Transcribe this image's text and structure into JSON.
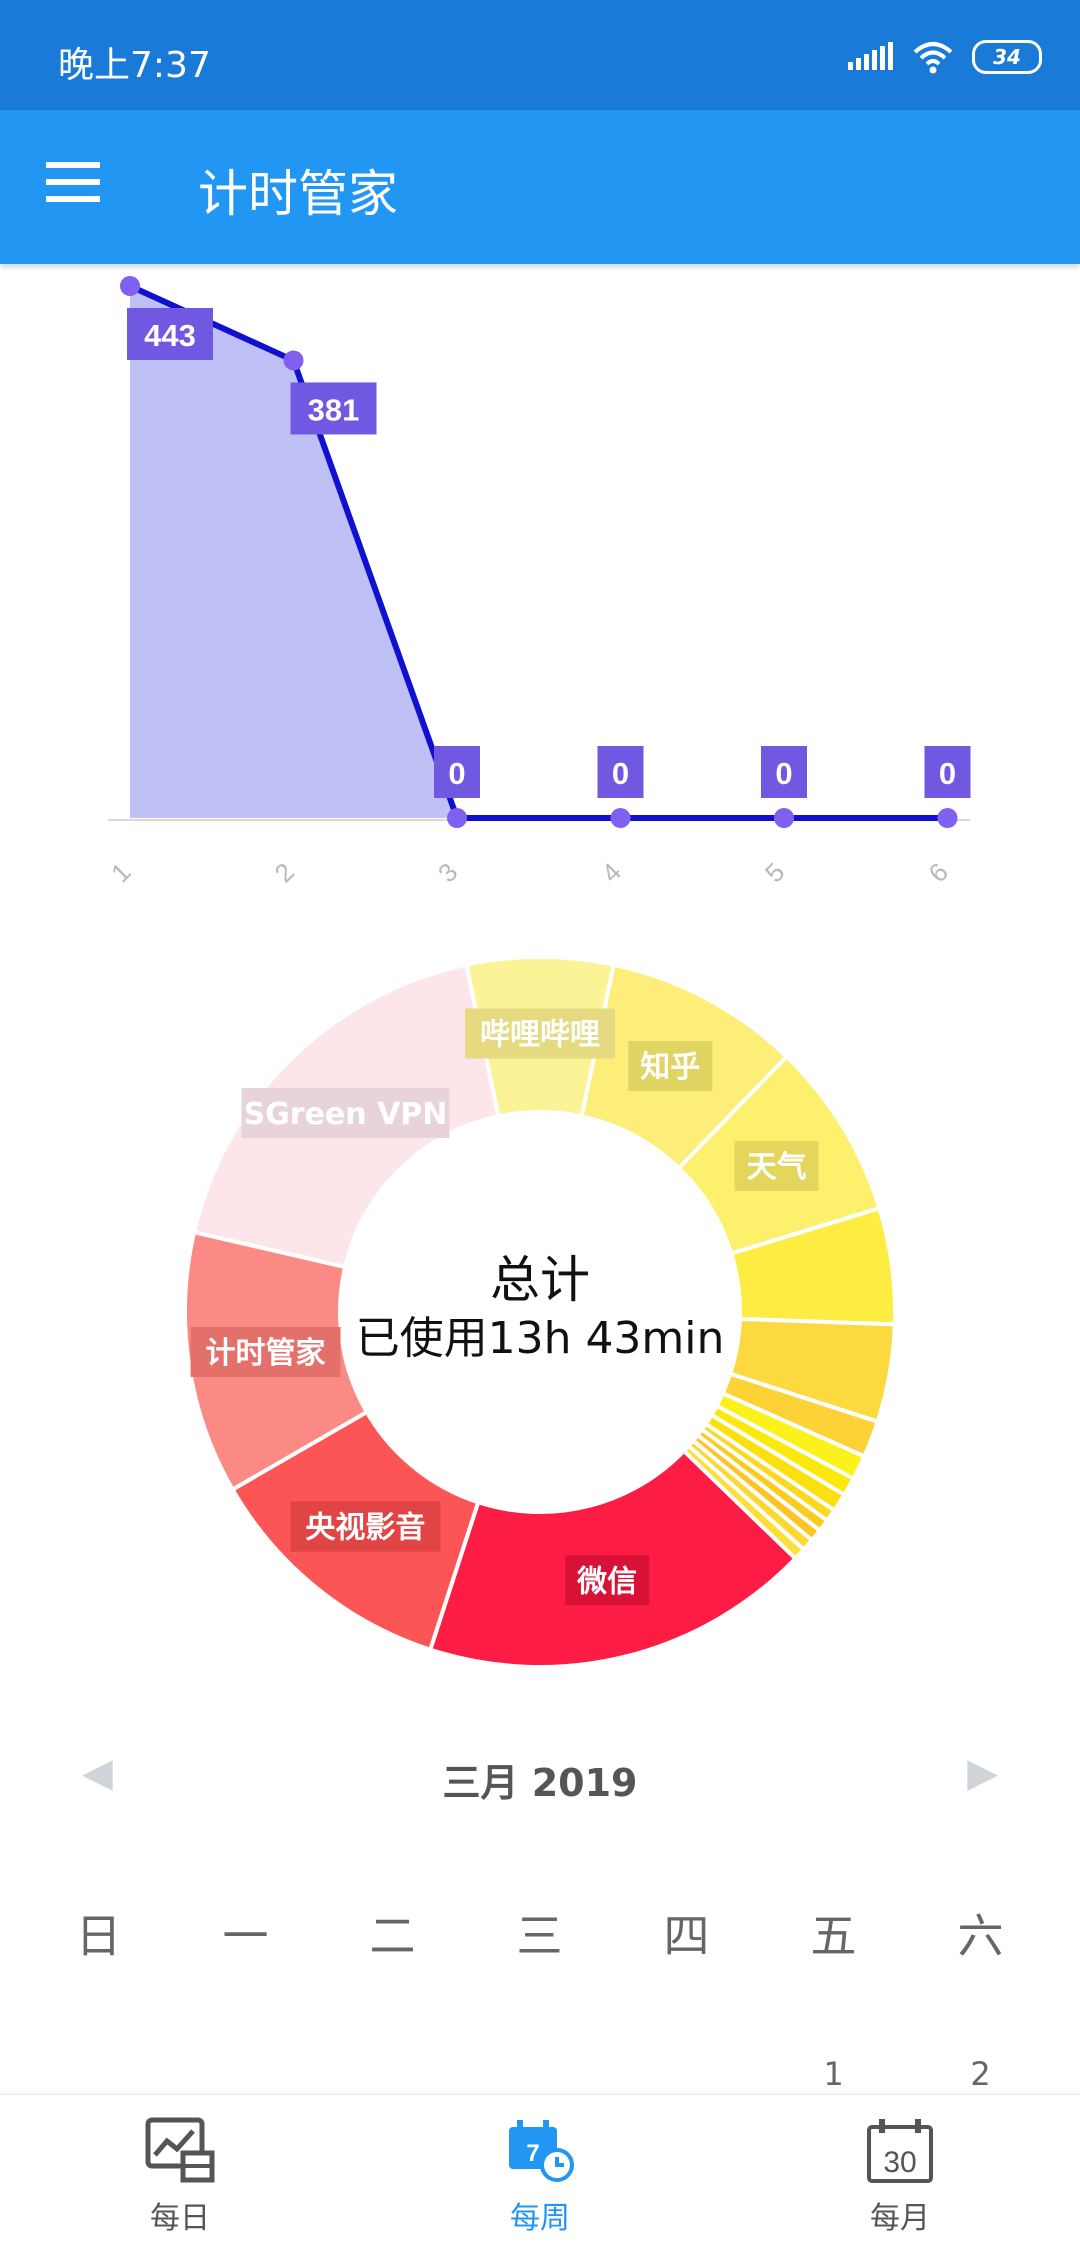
{
  "status_bar": {
    "time": "晚上7:37",
    "battery": "34"
  },
  "app_bar": {
    "title": "计时管家",
    "menu_icon": "menu-icon"
  },
  "chart_data": [
    {
      "type": "area",
      "x": [
        "1",
        "2",
        "3",
        "4",
        "5",
        "6"
      ],
      "values": [
        443,
        381,
        0,
        0,
        0,
        0
      ],
      "data_labels": [
        "443",
        "381",
        "0",
        "0",
        "0",
        "0"
      ],
      "colors": {
        "line": "#1010d0",
        "fill": "#bfc0f5",
        "point": "#8060f0",
        "label_bg": "#7058e0"
      }
    },
    {
      "type": "pie",
      "variant": "donut",
      "labeled_slices": [
        "微信",
        "央视影音",
        "计时管家",
        "SGreen VPN",
        "哔哩哔哩",
        "知乎",
        "天气"
      ]
    }
  ],
  "donut_center": {
    "label": "总计",
    "value": "已使用13h 43min"
  },
  "calendar": {
    "month_label": "三月 2019",
    "weekdays": [
      "日",
      "一",
      "二",
      "三",
      "四",
      "五",
      "六"
    ],
    "first_row": [
      "",
      "",
      "",
      "",
      "",
      "1",
      "2"
    ]
  },
  "bottom_nav": {
    "daily": "每日",
    "weekly": "每周",
    "weekly_icon_num": "7",
    "monthly": "每月",
    "monthly_icon_num": "30",
    "active": "weekly",
    "active_color": "#2196f3"
  }
}
